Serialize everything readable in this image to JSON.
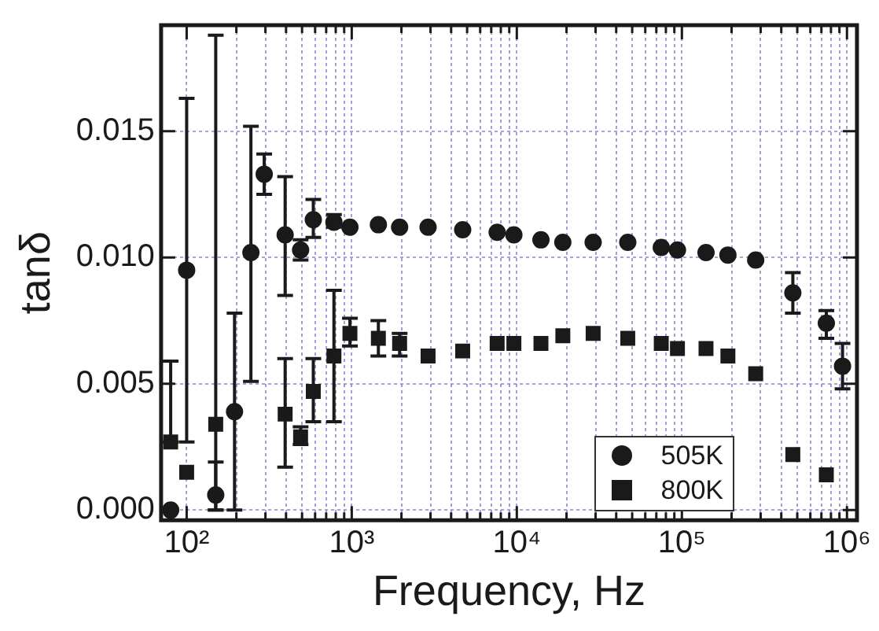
{
  "chart_data": {
    "type": "scatter",
    "xlabel": "Frequency, Hz",
    "ylabel": "tanδ",
    "log": "x",
    "grid": true,
    "legend": "bottom right",
    "x": [
      80,
      100,
      150,
      195,
      245,
      295,
      395,
      490,
      585,
      780,
      975,
      1450,
      1950,
      2900,
      4700,
      7600,
      9600,
      14000,
      19000,
      29000,
      47000,
      75000,
      94000,
      140000,
      190000,
      280000,
      470000,
      750000,
      940000
    ],
    "xlim": [
      70,
      1150000
    ],
    "xticks": [
      {
        "value": 100,
        "label": "10²"
      },
      {
        "value": 200,
        "label": null
      },
      {
        "value": 300,
        "label": null
      },
      {
        "value": 400,
        "label": null
      },
      {
        "value": 500,
        "label": null
      },
      {
        "value": 600,
        "label": null
      },
      {
        "value": 700,
        "label": null
      },
      {
        "value": 800,
        "label": null
      },
      {
        "value": 900,
        "label": null
      },
      {
        "value": 1000,
        "label": "10³"
      },
      {
        "value": 2000,
        "label": null
      },
      {
        "value": 3000,
        "label": null
      },
      {
        "value": 4000,
        "label": null
      },
      {
        "value": 5000,
        "label": null
      },
      {
        "value": 6000,
        "label": null
      },
      {
        "value": 7000,
        "label": null
      },
      {
        "value": 8000,
        "label": null
      },
      {
        "value": 9000,
        "label": null
      },
      {
        "value": 10000,
        "label": "10⁴"
      },
      {
        "value": 20000,
        "label": null
      },
      {
        "value": 30000,
        "label": null
      },
      {
        "value": 40000,
        "label": null
      },
      {
        "value": 50000,
        "label": null
      },
      {
        "value": 60000,
        "label": null
      },
      {
        "value": 70000,
        "label": null
      },
      {
        "value": 80000,
        "label": null
      },
      {
        "value": 90000,
        "label": null
      },
      {
        "value": 100000,
        "label": "10⁵"
      },
      {
        "value": 200000,
        "label": null
      },
      {
        "value": 300000,
        "label": null
      },
      {
        "value": 400000,
        "label": null
      },
      {
        "value": 500000,
        "label": null
      },
      {
        "value": 600000,
        "label": null
      },
      {
        "value": 700000,
        "label": null
      },
      {
        "value": 800000,
        "label": null
      },
      {
        "value": 900000,
        "label": null
      },
      {
        "value": 1000000,
        "label": "10⁶"
      }
    ],
    "ylim": [
      -0.0004,
      0.0192
    ],
    "yticks": [
      {
        "value": 0,
        "label": "0.000"
      },
      {
        "value": 0.005,
        "label": "0.005"
      },
      {
        "value": 0.01,
        "label": "0.010"
      },
      {
        "value": 0.015,
        "label": "0.015"
      }
    ],
    "series": [
      {
        "name": "505K",
        "color": "#1a1a1a",
        "marker": "circle",
        "values": [
          0.0,
          0.0095,
          0.0006,
          0.0039,
          0.0102,
          0.0133,
          0.0109,
          0.0103,
          0.0115,
          0.0114,
          0.0112,
          0.0113,
          0.0112,
          0.0112,
          0.0111,
          0.011,
          0.0109,
          0.0107,
          0.0106,
          0.0106,
          0.0106,
          0.0104,
          0.0103,
          0.0102,
          0.0101,
          0.0099,
          0.0086,
          0.0074,
          0.0057
        ],
        "errors": [
          null,
          [
            0.0027,
            0.0163
          ],
          [
            0.0,
            0.0019
          ],
          [
            0.0,
            0.0078
          ],
          [
            0.0051,
            0.0152
          ],
          [
            0.0125,
            0.0141
          ],
          [
            0.0085,
            0.0132
          ],
          [
            0.0099,
            0.0107
          ],
          [
            0.0108,
            0.0123
          ],
          [
            0.0112,
            0.0117
          ],
          null,
          null,
          null,
          null,
          null,
          null,
          null,
          null,
          null,
          null,
          null,
          null,
          null,
          null,
          null,
          null,
          [
            0.0078,
            0.0094
          ],
          [
            0.0068,
            0.0079
          ],
          [
            0.0048,
            0.0066
          ]
        ]
      },
      {
        "name": "800K",
        "color": "#1a1a1a",
        "marker": "square",
        "values": [
          0.0027,
          0.0015,
          0.0034,
          null,
          null,
          null,
          0.0038,
          0.0029,
          0.0047,
          0.0061,
          0.007,
          0.0068,
          0.0066,
          0.0061,
          0.0063,
          0.0066,
          0.0066,
          0.0066,
          0.0069,
          0.007,
          0.0068,
          0.0066,
          0.0064,
          0.0064,
          0.0061,
          0.0054,
          0.0022,
          0.0014,
          null
        ],
        "errors": [
          [
            0.0027,
            0.0059
          ],
          null,
          [
            0.0,
            0.0188
          ],
          null,
          null,
          null,
          [
            0.0017,
            0.006
          ],
          [
            0.0026,
            0.0033
          ],
          [
            0.0035,
            0.006
          ],
          [
            0.0035,
            0.0087
          ],
          [
            0.0065,
            0.0076
          ],
          [
            0.0061,
            0.0075
          ],
          [
            0.0061,
            0.007
          ],
          null,
          null,
          null,
          null,
          null,
          null,
          null,
          null,
          null,
          null,
          null,
          null,
          null,
          null,
          null,
          null
        ]
      }
    ]
  }
}
